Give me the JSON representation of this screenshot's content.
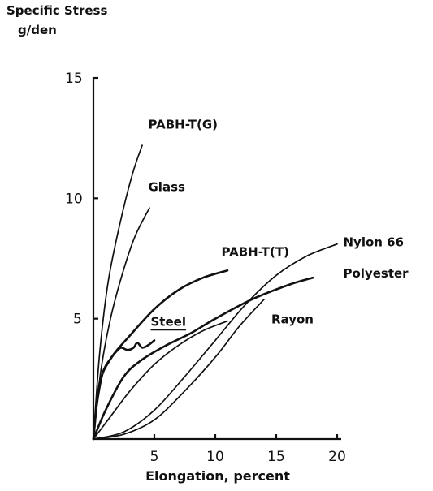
{
  "chart_data": {
    "type": "line",
    "ylabel_line1": "Specific Stress",
    "ylabel_line2": "g/den",
    "xlabel": "Elongation, percent",
    "xlim": [
      0,
      20
    ],
    "ylim": [
      0,
      15
    ],
    "x_ticks": [
      "5",
      "10",
      "15",
      "20"
    ],
    "y_ticks": [
      "5",
      "10",
      "15"
    ],
    "grid": false,
    "legend": "none (curves labelled directly)",
    "series": [
      {
        "name": "PABH-T(G)",
        "x": [
          0,
          0.5,
          1.2,
          2.2,
          3.2,
          4.0
        ],
        "y": [
          0,
          3.5,
          6.5,
          9.0,
          11.0,
          12.2
        ]
      },
      {
        "name": "Glass",
        "x": [
          0,
          0.6,
          1.4,
          2.4,
          3.4,
          4.6
        ],
        "y": [
          0,
          2.8,
          5.0,
          6.9,
          8.4,
          9.6
        ]
      },
      {
        "name": "PABH-T(T)",
        "x": [
          0,
          0.5,
          1.5,
          3.0,
          5.0,
          7.0,
          9.0,
          11.0
        ],
        "y": [
          0,
          2.3,
          3.4,
          4.3,
          5.4,
          6.2,
          6.7,
          7.0
        ]
      },
      {
        "name": "Steel",
        "x": [
          0,
          0.3,
          0.8,
          1.5,
          2.0,
          2.3,
          2.8,
          3.3,
          3.6,
          4.0,
          4.5,
          5.0
        ],
        "y": [
          0,
          1.5,
          2.8,
          3.4,
          3.7,
          3.8,
          3.7,
          3.8,
          4.0,
          3.8,
          3.9,
          4.1
        ]
      },
      {
        "name": "Nylon 66",
        "x": [
          0,
          2.5,
          5.0,
          7.5,
          10.0,
          12.5,
          15.0,
          17.5,
          20.0
        ],
        "y": [
          0,
          0.3,
          1.2,
          2.6,
          4.1,
          5.6,
          6.8,
          7.6,
          8.1
        ]
      },
      {
        "name": "Polyester",
        "x": [
          0,
          1.0,
          2.5,
          4.0,
          6.0,
          8.0,
          10.0,
          13.0,
          16.0,
          18.0
        ],
        "y": [
          0,
          1.2,
          2.6,
          3.3,
          3.9,
          4.4,
          5.0,
          5.8,
          6.4,
          6.7
        ]
      },
      {
        "name": "Rayon",
        "x": [
          0,
          1.5,
          3.0,
          5.0,
          7.0,
          9.0,
          11.0
        ],
        "y": [
          0,
          1.0,
          2.0,
          3.1,
          3.9,
          4.5,
          4.9
        ]
      },
      {
        "name": "",
        "x": [
          0,
          2.5,
          5.0,
          7.5,
          10.0,
          12.0,
          14.0
        ],
        "y": [
          0,
          0.2,
          0.8,
          2.0,
          3.4,
          4.7,
          5.8
        ]
      }
    ],
    "annotations": [
      {
        "text": "PABH-T(G)",
        "x": 4.5,
        "y": 12.9
      },
      {
        "text": "Glass",
        "x": 4.5,
        "y": 10.3
      },
      {
        "text": "PABH-T(T)",
        "x": 10.5,
        "y": 7.6
      },
      {
        "text": "Steel",
        "x": 4.7,
        "y": 4.7
      },
      {
        "text": "Rayon",
        "x": 14.6,
        "y": 4.8
      },
      {
        "text": "Nylon 66",
        "x": 20.5,
        "y": 8.0
      },
      {
        "text": "Polyester",
        "x": 20.5,
        "y": 6.7
      }
    ]
  }
}
